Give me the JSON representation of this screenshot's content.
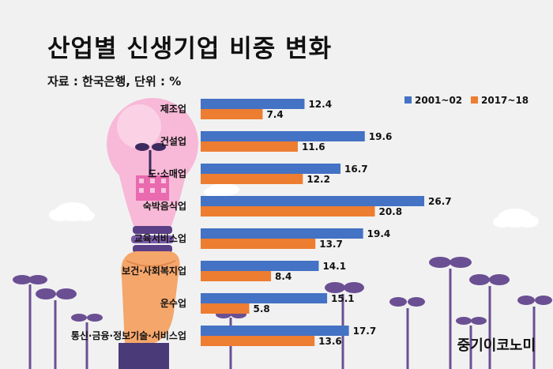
{
  "chart_data": {
    "type": "bar",
    "orientation": "horizontal",
    "title": "산업별 신생기업 비중 변화",
    "subtitle": "자료 : 한국은행, 단위 : %",
    "categories": [
      "제조업",
      "건설업",
      "도·소매업",
      "숙박음식업",
      "교육서비스업",
      "보건·사회복지업",
      "운수업",
      "통신·금융·정보기술·서비스업"
    ],
    "series": [
      {
        "name": "2001~02",
        "color": "#4472c4",
        "values": [
          12.4,
          19.6,
          16.7,
          26.7,
          19.4,
          14.1,
          15.1,
          17.7
        ]
      },
      {
        "name": "2017~18",
        "color": "#ed7d31",
        "values": [
          7.4,
          11.6,
          12.2,
          20.8,
          13.7,
          8.4,
          5.8,
          13.6
        ]
      }
    ],
    "xlim": [
      0,
      30
    ],
    "grid": false,
    "legend_position": "top-right",
    "data_labels": true
  },
  "brand": "중기이코노미",
  "colors": {
    "background": "#f1f1f1",
    "sprout_leaf": "#6b4f93",
    "bulb": "#f6b8d6",
    "hand": "#f5a66b"
  }
}
